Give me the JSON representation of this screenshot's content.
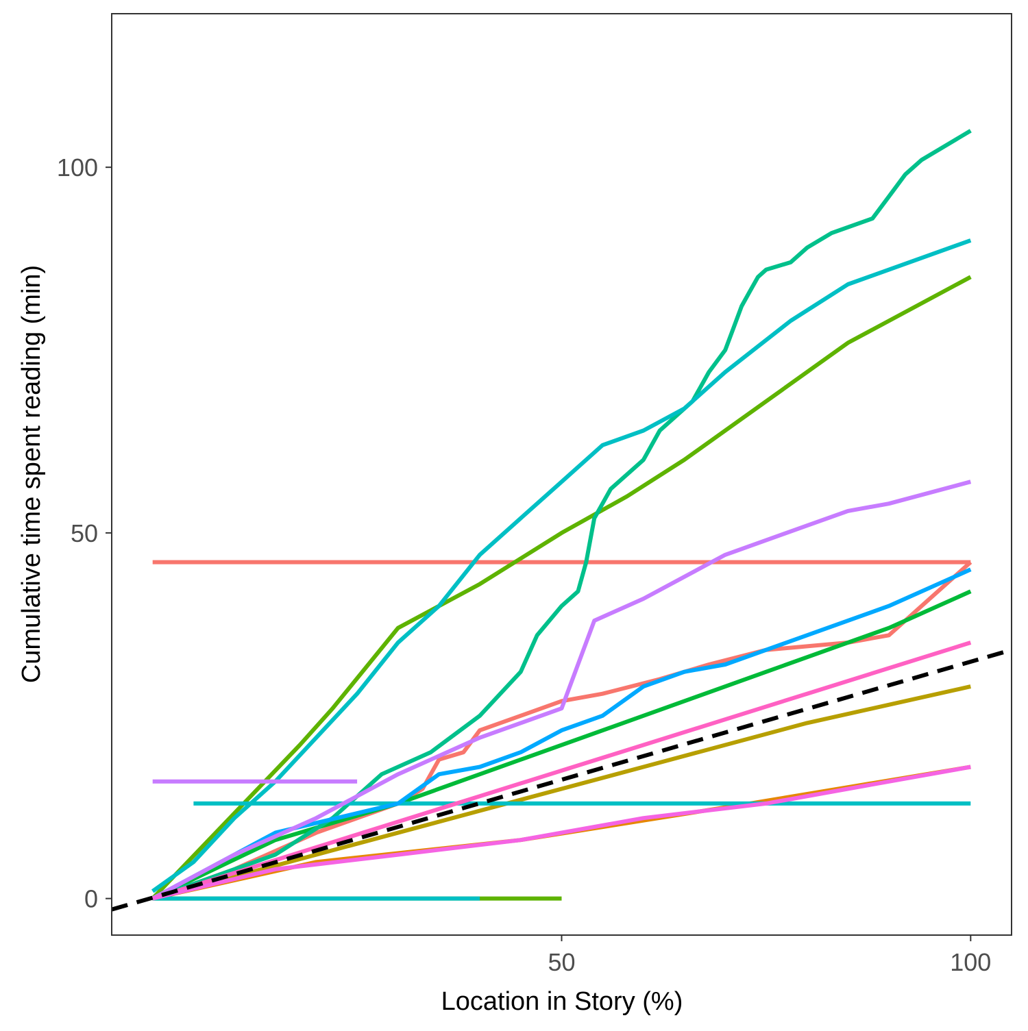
{
  "chart_data": {
    "type": "line",
    "xlabel": "Location in Story (%)",
    "ylabel": "Cumulative time spent reading (min)",
    "xlim": [
      -5,
      105
    ],
    "ylim": [
      -5,
      121
    ],
    "xticks": [
      50,
      100
    ],
    "yticks": [
      0,
      50,
      100
    ],
    "grid": false,
    "legend": "none",
    "reference_line": {
      "style": "dashed",
      "color": "#000000",
      "x": [
        -5,
        105
      ],
      "y": [
        -1.5,
        34
      ]
    },
    "series": [
      {
        "color": "#F8766D",
        "x": [
          0,
          100
        ],
        "y": [
          46,
          46
        ]
      },
      {
        "color": "#F8766D",
        "x": [
          0,
          10,
          20,
          30,
          33,
          35,
          38,
          40,
          45,
          50,
          55,
          62,
          68,
          75,
          85,
          90,
          95,
          100
        ],
        "y": [
          0,
          4,
          9,
          13,
          15,
          19,
          20,
          23,
          25,
          27,
          28,
          30,
          32,
          34,
          35,
          36,
          41,
          46
        ]
      },
      {
        "color": "#E58700",
        "x": [
          0,
          20,
          45,
          73,
          100
        ],
        "y": [
          0,
          5,
          8,
          13,
          18
        ]
      },
      {
        "color": "#B79F00",
        "x": [
          0,
          20,
          40,
          60,
          80,
          100
        ],
        "y": [
          0,
          6,
          12,
          18,
          24,
          29
        ]
      },
      {
        "color": "#5EB300",
        "x": [
          0,
          50
        ],
        "y": [
          0,
          0
        ]
      },
      {
        "color": "#5EB300",
        "x": [
          0,
          18,
          22,
          30,
          40,
          50,
          58,
          65,
          75,
          85,
          100
        ],
        "y": [
          0,
          21,
          26,
          37,
          43,
          50,
          55,
          60,
          68,
          76,
          85
        ]
      },
      {
        "color": "#00BA38",
        "x": [
          0,
          15,
          30,
          45,
          60,
          75,
          90,
          100
        ],
        "y": [
          0,
          8,
          13,
          19,
          25,
          31,
          37,
          42
        ]
      },
      {
        "color": "#00C08B",
        "x": [
          0,
          15,
          22,
          28,
          34,
          40,
          45,
          47,
          50,
          52,
          53,
          54,
          56,
          60,
          62,
          66,
          68,
          70,
          71,
          72,
          73,
          74,
          75,
          78,
          80,
          83,
          88,
          90,
          92,
          94,
          100
        ],
        "y": [
          0,
          6,
          11,
          17,
          20,
          25,
          31,
          36,
          40,
          42,
          46,
          52,
          56,
          60,
          64,
          68,
          72,
          75,
          78,
          81,
          83,
          85,
          86,
          87,
          89,
          91,
          93,
          96,
          99,
          101,
          105
        ]
      },
      {
        "color": "#00BFC4",
        "x": [
          0,
          5,
          10,
          15,
          20,
          25,
          30,
          35,
          40,
          45,
          50,
          55,
          60,
          65,
          70,
          78,
          85,
          100
        ],
        "y": [
          1,
          5,
          11,
          16,
          22,
          28,
          35,
          40,
          47,
          52,
          57,
          62,
          64,
          67,
          72,
          79,
          84,
          90
        ]
      },
      {
        "color": "#00BFC4",
        "x": [
          0,
          10,
          20,
          30,
          40
        ],
        "y": [
          0,
          0,
          0,
          0,
          0
        ]
      },
      {
        "color": "#00BFC4",
        "x": [
          5,
          20,
          40,
          60,
          80,
          100
        ],
        "y": [
          13,
          13,
          13,
          13,
          13,
          13
        ]
      },
      {
        "color": "#00A9FF",
        "x": [
          0,
          15,
          30,
          35,
          40,
          45,
          50,
          55,
          60,
          65,
          70,
          80,
          90,
          100
        ],
        "y": [
          0,
          9,
          13,
          17,
          18,
          20,
          23,
          25,
          29,
          31,
          32,
          36,
          40,
          45
        ]
      },
      {
        "color": "#C77CFF",
        "x": [
          0,
          10,
          20,
          30,
          40,
          50,
          54,
          60,
          70,
          80,
          85,
          90,
          100
        ],
        "y": [
          0,
          6,
          11,
          17,
          22,
          26,
          38,
          41,
          47,
          51,
          53,
          54,
          57
        ]
      },
      {
        "color": "#C77CFF",
        "x": [
          0,
          25
        ],
        "y": [
          16,
          16
        ]
      },
      {
        "color": "#FF61C3",
        "x": [
          0,
          20,
          40,
          60,
          80,
          100
        ],
        "y": [
          0,
          7,
          14,
          21,
          28,
          35
        ]
      },
      {
        "color": "#F564E3",
        "x": [
          0,
          15,
          30,
          45,
          60,
          75,
          90,
          100
        ],
        "y": [
          0,
          4,
          6,
          8,
          11,
          13,
          16,
          18
        ]
      }
    ]
  }
}
